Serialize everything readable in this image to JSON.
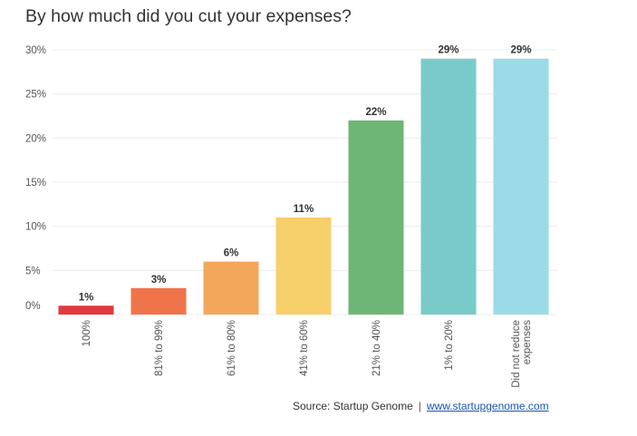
{
  "chart_data": {
    "type": "bar",
    "title": "By how much did you cut your expenses?",
    "categories": [
      "100%",
      "81% to 99%",
      "61% to 80%",
      "41% to 60%",
      "21% to 40%",
      "1% to 20%",
      "Did not reduce expenses"
    ],
    "values": [
      1,
      3,
      6,
      11,
      22,
      29,
      29
    ],
    "value_labels": [
      "1%",
      "3%",
      "6%",
      "11%",
      "22%",
      "29%",
      "29%"
    ],
    "colors": [
      "#e0393e",
      "#f0744a",
      "#f3a75a",
      "#f7cf6b",
      "#6db675",
      "#79cbc9",
      "#9adbe7"
    ],
    "yticks": [
      "0%",
      "5%",
      "10%",
      "15%",
      "20%",
      "25%",
      "30%"
    ],
    "ylim": [
      0,
      30
    ],
    "xlabel": "",
    "ylabel": "",
    "grid": true,
    "legend": "none"
  },
  "source": {
    "label": "Source: Startup Genome",
    "separator": "|",
    "link_text": "www.startupgenome.com"
  }
}
